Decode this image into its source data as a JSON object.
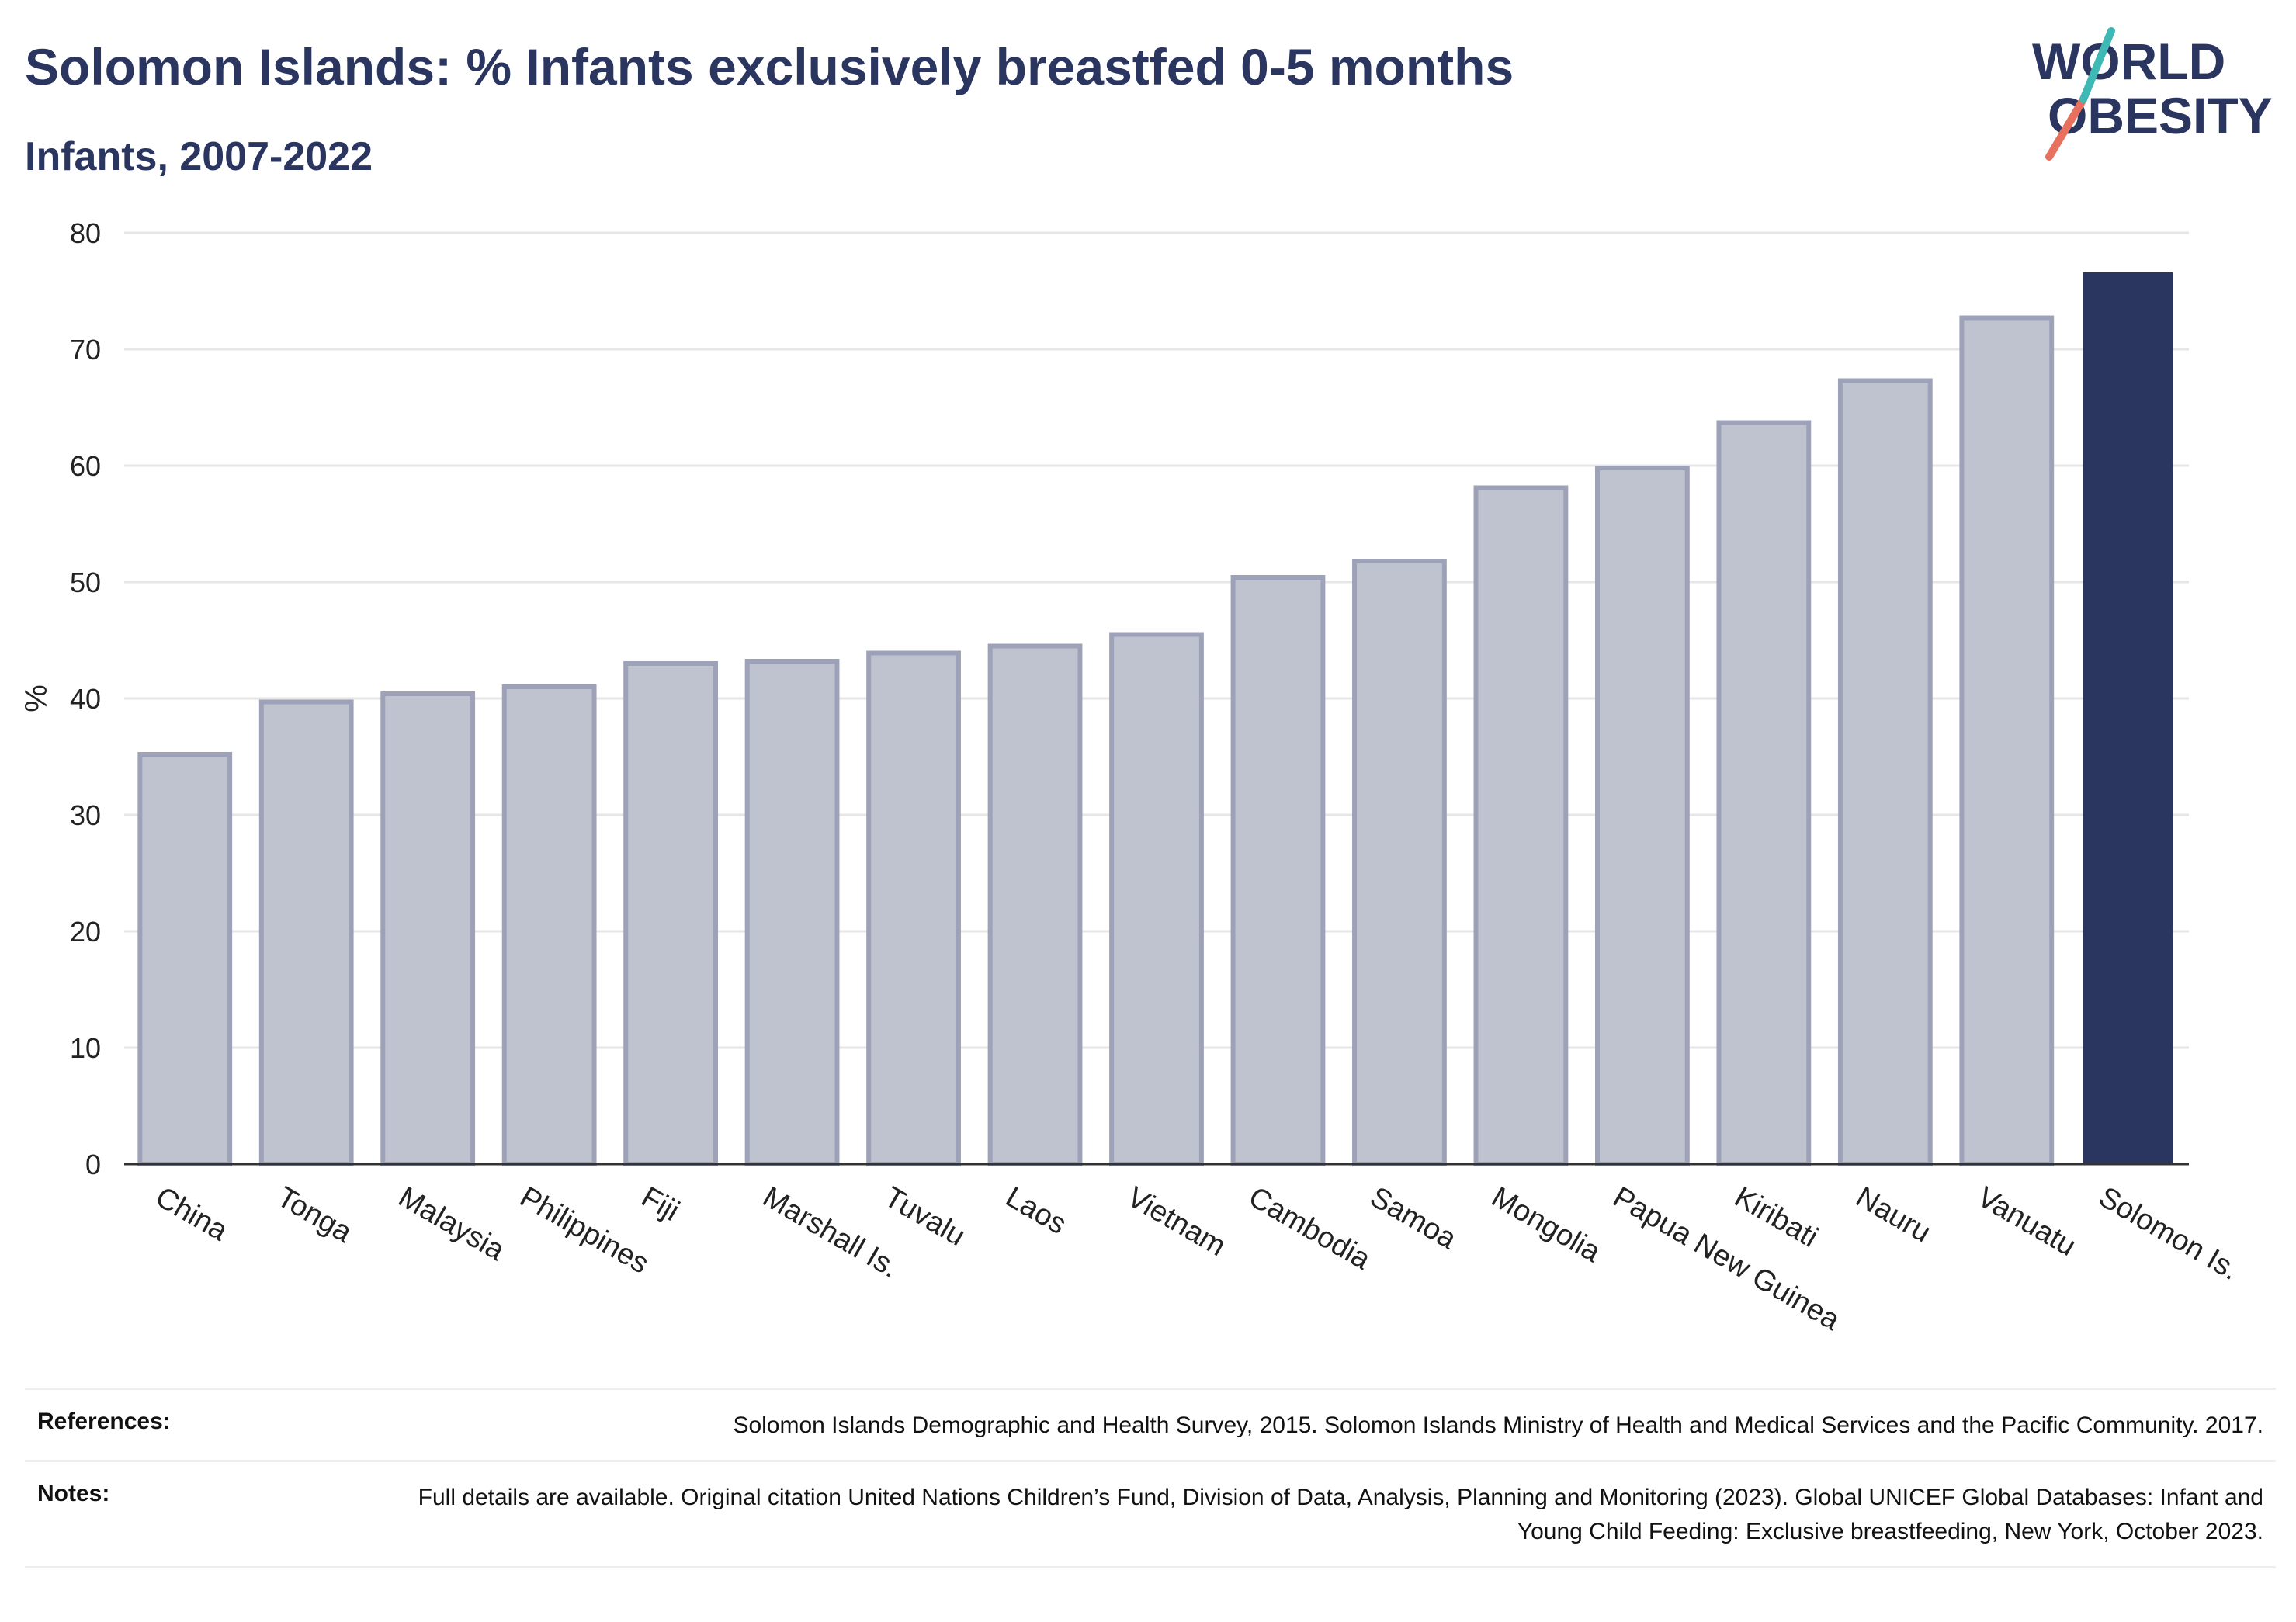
{
  "header": {
    "title": "Solomon Islands: % Infants exclusively breastfed 0-5 months",
    "subtitle": "Infants, 2007-2022"
  },
  "logo": {
    "line1": "WORLD",
    "line2": "OBESITY",
    "text_color": "#2a3560",
    "slash_colors": [
      "#e8705f",
      "#3fb9b5"
    ]
  },
  "chart_data": {
    "type": "bar",
    "title": "Solomon Islands: % Infants exclusively breastfed 0-5 months",
    "subtitle": "Infants, 2007-2022",
    "categories": [
      "China",
      "Tonga",
      "Malaysia",
      "Philippines",
      "Fiji",
      "Marshall Is.",
      "Tuvalu",
      "Laos",
      "Vietnam",
      "Cambodia",
      "Samoa",
      "Mongolia",
      "Papua New Guinea",
      "Kiribati",
      "Nauru",
      "Vanuatu",
      "Solomon Is."
    ],
    "values": [
      35.2,
      39.7,
      40.4,
      41.0,
      43.0,
      43.2,
      43.9,
      44.5,
      45.5,
      50.4,
      51.8,
      58.1,
      59.8,
      63.7,
      67.3,
      72.7,
      76.6
    ],
    "highlight": "Solomon Is.",
    "ylabel": "%",
    "xlabel": "",
    "ylim": [
      0,
      80
    ],
    "yticks": [
      0,
      10,
      20,
      30,
      40,
      50,
      60,
      70,
      80
    ],
    "grid": true,
    "colors": {
      "bar": "#bfc2cf",
      "bar_border": "#9ea2b8",
      "highlight": "#2a3560",
      "grid": "#e6e6e6",
      "axis": "#333333"
    }
  },
  "footer": {
    "references_label": "References:",
    "references_text": "Solomon Islands Demographic and Health Survey, 2015. Solomon Islands Ministry of Health and Medical Services and the Pacific Community. 2017.",
    "notes_label": "Notes:",
    "notes_text": "Full details are available. Original citation United Nations Children’s Fund, Division of Data, Analysis, Planning and Monitoring (2023). Global UNICEF Global Databases: Infant and Young Child Feeding: Exclusive breastfeeding, New York, October 2023."
  }
}
